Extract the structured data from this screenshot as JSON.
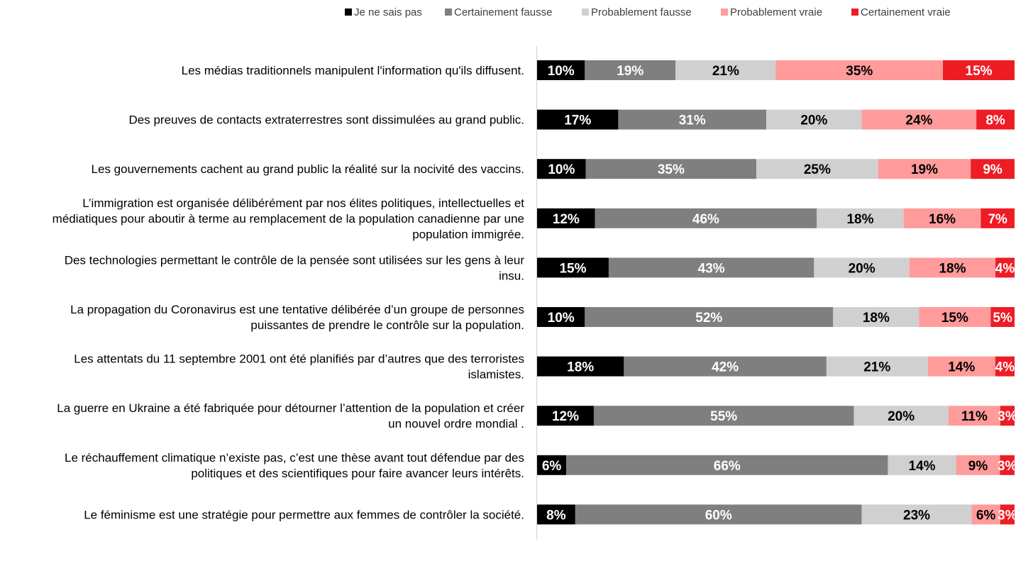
{
  "chart_data": {
    "type": "bar",
    "orientation": "horizontal",
    "stacked": true,
    "normalized_percent": true,
    "legend_position": "top",
    "grid": false,
    "value_suffix": "%",
    "series": [
      {
        "name": "Je ne sais pas",
        "color": "#000000",
        "label_color": "#ffffff",
        "values": [
          10,
          17,
          10,
          12,
          15,
          10,
          18,
          12,
          6,
          8
        ]
      },
      {
        "name": "Certainement fausse",
        "color": "#7f7f7f",
        "label_color": "#ffffff",
        "values": [
          19,
          31,
          35,
          46,
          43,
          52,
          42,
          55,
          66,
          60
        ]
      },
      {
        "name": "Probablement fausse",
        "color": "#d0d0d0",
        "label_color": "#000000",
        "values": [
          21,
          20,
          25,
          18,
          20,
          18,
          21,
          20,
          14,
          23
        ]
      },
      {
        "name": "Probablement vraie",
        "color": "#ff9b9b",
        "label_color": "#000000",
        "values": [
          35,
          24,
          19,
          16,
          18,
          15,
          14,
          11,
          9,
          6
        ]
      },
      {
        "name": "Certainement vraie",
        "color": "#ee1c25",
        "label_color": "#ffffff",
        "values": [
          15,
          8,
          9,
          7,
          4,
          5,
          4,
          3,
          3,
          3
        ]
      }
    ],
    "categories": [
      [
        "Les médias traditionnels manipulent l'information qu'ils diffusent."
      ],
      [
        "Des preuves de contacts extraterrestres sont dissimulées au grand public."
      ],
      [
        "Les gouvernements cachent au grand public la réalité sur la nocivité des vaccins."
      ],
      [
        "L’immigration est organisée délibérément par nos élites politiques, intellectuelles et",
        "médiatiques pour aboutir à terme au remplacement de la population canadienne par une",
        "population immigrée."
      ],
      [
        "Des technologies permettant le contrôle de la pensée sont utilisées sur les gens à leur",
        "insu."
      ],
      [
        "La propagation du Coronavirus est une tentative délibérée d’un groupe de personnes",
        "puissantes de prendre le contrôle sur la population."
      ],
      [
        "Les  attentats du 11 septembre 2001 ont été planifiés par d’autres que des terroristes",
        "islamistes."
      ],
      [
        "La guerre en Ukraine a été fabriquée pour détourner l’attention de la population et créer",
        "un nouvel ordre mondial ."
      ],
      [
        "Le réchauffement climatique n’existe pas, c’est une thèse avant tout défendue par des",
        "politiques et des scientifiques pour faire avancer leurs intérêts."
      ],
      [
        "Le féminisme est une stratégie pour permettre aux femmes de contrôler la société."
      ]
    ]
  }
}
